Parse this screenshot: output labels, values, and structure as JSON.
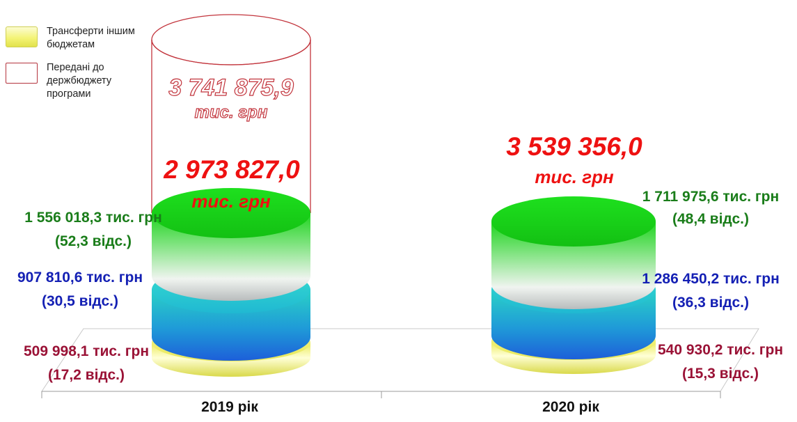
{
  "legend": {
    "items": [
      {
        "label": "Трансферти іншим бюджетам",
        "style": "yellow"
      },
      {
        "label": "Передані до держбюджету програми",
        "style": "outline"
      }
    ]
  },
  "chart_data": {
    "type": "bar",
    "style": "stacked 3D cylinders",
    "categories": [
      "2019 рік",
      "2020 рік"
    ],
    "series": [
      {
        "name": "Трансферти іншим бюджетам",
        "values": [
          509998.1,
          540930.2
        ],
        "shares": [
          17.2,
          15.3
        ],
        "color": "#f4f477"
      },
      {
        "values": [
          907810.6,
          1286450.2
        ],
        "shares": [
          30.5,
          36.3
        ],
        "color": "#22c8d2"
      },
      {
        "values": [
          1556018.3,
          1711975.6
        ],
        "shares": [
          52.3,
          48.4
        ],
        "color": "#22d822"
      }
    ],
    "transferred_program_2019": {
      "name": "Передані до держбюджету програми",
      "total": 3741875.9
    },
    "totals": [
      2973827.0,
      3539356.0
    ],
    "legend_position": "top-left"
  },
  "labels": {
    "y2019": {
      "top_value": "1 556 018,3 тис. грн",
      "top_share": "(52,3 відс.)",
      "mid_value": "907 810,6 тис. грн",
      "mid_share": "(30,5 відс.)",
      "bot_value": "509 998,1 тис. грн",
      "bot_share": "(17,2 відс.)",
      "total": "2 973 827,0",
      "total_unit": "тис. грн",
      "ghost_total": "3 741 875,9",
      "ghost_unit": "тис. грн",
      "year": "2019 рік"
    },
    "y2020": {
      "top_value": "1 711 975,6 тис. грн",
      "top_share": "(48,4 відс.)",
      "mid_value": "1 286 450,2 тис. грн",
      "mid_share": "(36,3 відс.)",
      "bot_value": "540 930,2 тис. грн",
      "bot_share": "(15,3 відс.)",
      "total": "3 539 356,0",
      "total_unit": "тис. грн",
      "year": "2020 рік"
    }
  },
  "colors": {
    "green": "#1a7d1a",
    "blue": "#1420b4",
    "maroon": "#9a1236",
    "total_red": "#ee1111",
    "ghost_outline": "#c2343c"
  }
}
